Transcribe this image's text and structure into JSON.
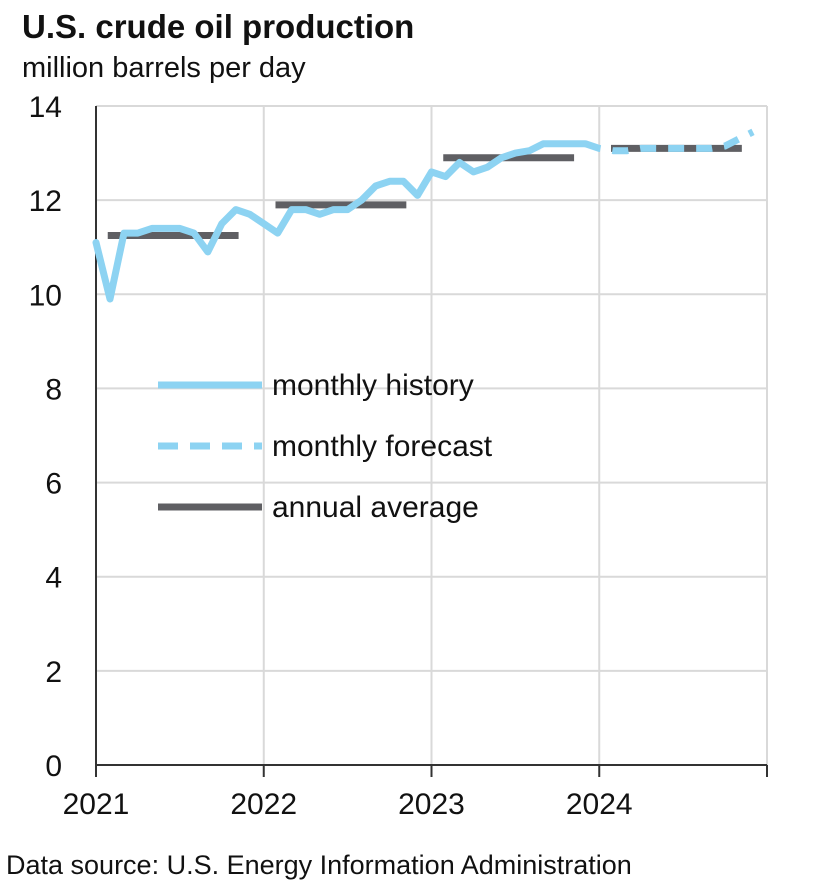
{
  "title": "U.S. crude oil production",
  "subtitle": "million barrels per day",
  "source": "Data source: U.S. Energy Information Administration",
  "colors": {
    "history": "#8dd3f2",
    "forecast": "#8dd3f2",
    "annual": "#5f5f63",
    "grid": "#d9d9d9",
    "axis": "#333333"
  },
  "chart_data": {
    "type": "line",
    "xlim": [
      2021,
      2025
    ],
    "ylim": [
      0,
      14
    ],
    "y_ticks": [
      "0",
      "2",
      "4",
      "6",
      "8",
      "10",
      "12",
      "14"
    ],
    "x_ticks": [
      "2021",
      "2022",
      "2023",
      "2024"
    ],
    "grid": true,
    "legend_position": "center-left",
    "series": [
      {
        "name": "monthly history",
        "style": "solid",
        "x": [
          "2021-01",
          "2021-02",
          "2021-03",
          "2021-04",
          "2021-05",
          "2021-06",
          "2021-07",
          "2021-08",
          "2021-09",
          "2021-10",
          "2021-11",
          "2021-12",
          "2022-01",
          "2022-02",
          "2022-03",
          "2022-04",
          "2022-05",
          "2022-06",
          "2022-07",
          "2022-08",
          "2022-09",
          "2022-10",
          "2022-11",
          "2022-12",
          "2023-01",
          "2023-02",
          "2023-03",
          "2023-04",
          "2023-05",
          "2023-06",
          "2023-07",
          "2023-08",
          "2023-09",
          "2023-10",
          "2023-11",
          "2023-12"
        ],
        "values": [
          11.1,
          9.9,
          11.3,
          11.3,
          11.4,
          11.4,
          11.4,
          11.3,
          10.9,
          11.5,
          11.8,
          11.7,
          11.5,
          11.3,
          11.8,
          11.8,
          11.7,
          11.8,
          11.8,
          12.0,
          12.3,
          12.4,
          12.4,
          12.1,
          12.6,
          12.5,
          12.8,
          12.6,
          12.7,
          12.9,
          13.0,
          13.05,
          13.2,
          13.2,
          13.2,
          13.2
        ]
      },
      {
        "name": "monthly forecast",
        "style": "dashed",
        "x": [
          "2023-12",
          "2024-01",
          "2024-02",
          "2024-03",
          "2024-04",
          "2024-05",
          "2024-06",
          "2024-07",
          "2024-08",
          "2024-09",
          "2024-10",
          "2024-11",
          "2024-12"
        ],
        "values": [
          13.2,
          13.1,
          13.05,
          13.05,
          13.1,
          13.1,
          13.1,
          13.1,
          13.1,
          13.1,
          13.15,
          13.3,
          13.45
        ]
      },
      {
        "name": "annual average",
        "style": "solid",
        "x": [
          "2021",
          "2022",
          "2023",
          "2024"
        ],
        "values": [
          11.25,
          11.9,
          12.9,
          13.1
        ]
      }
    ]
  }
}
